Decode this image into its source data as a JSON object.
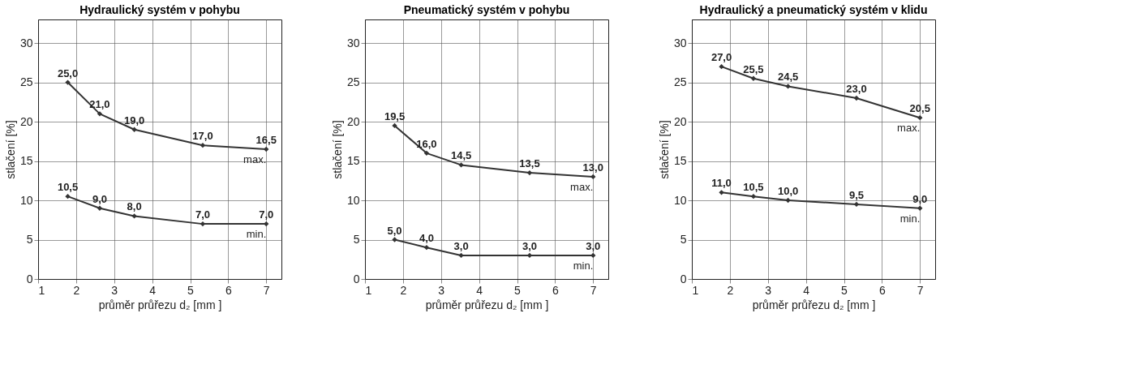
{
  "chart_data": [
    {
      "type": "line",
      "title": "Hydraulický systém v pohybu",
      "xlabel": "průměr průřezu d₂ [mm ]",
      "ylabel": "stlačení [%]",
      "x": [
        1.78,
        2.62,
        3.53,
        5.33,
        7.0
      ],
      "xlim": [
        1,
        7.4
      ],
      "xticks": [
        1,
        2,
        3,
        4,
        5,
        6,
        7
      ],
      "ylim": [
        0,
        33
      ],
      "yticks": [
        0,
        5,
        10,
        15,
        20,
        25,
        30
      ],
      "grid": true,
      "marker": "diamond",
      "line_style": "solid",
      "series": [
        {
          "name": "max.",
          "color": "#333333",
          "values": [
            25.0,
            21.0,
            19.0,
            17.0,
            16.5
          ],
          "value_labels": [
            "25,0",
            "21,0",
            "19,0",
            "17,0",
            "16,5"
          ]
        },
        {
          "name": "min.",
          "color": "#333333",
          "values": [
            10.5,
            9.0,
            8.0,
            7.0,
            7.0
          ],
          "value_labels": [
            "10,5",
            "9,0",
            "8,0",
            "7,0",
            "7,0"
          ]
        }
      ]
    },
    {
      "type": "line",
      "title": "Pneumatický systém v pohybu",
      "xlabel": "průměr průřezu d₂ [mm ]",
      "ylabel": "stlačení [%]",
      "x": [
        1.78,
        2.62,
        3.53,
        5.33,
        7.0
      ],
      "xlim": [
        1,
        7.4
      ],
      "xticks": [
        1,
        2,
        3,
        4,
        5,
        6,
        7
      ],
      "ylim": [
        0,
        33
      ],
      "yticks": [
        0,
        5,
        10,
        15,
        20,
        25,
        30
      ],
      "grid": true,
      "marker": "diamond",
      "line_style": "solid",
      "series": [
        {
          "name": "max.",
          "color": "#333333",
          "values": [
            19.5,
            16.0,
            14.5,
            13.5,
            13.0
          ],
          "value_labels": [
            "19,5",
            "16,0",
            "14,5",
            "13,5",
            "13,0"
          ]
        },
        {
          "name": "min.",
          "color": "#333333",
          "values": [
            5.0,
            4.0,
            3.0,
            3.0,
            3.0
          ],
          "value_labels": [
            "5,0",
            "4,0",
            "3,0",
            "3,0",
            "3,0"
          ]
        }
      ]
    },
    {
      "type": "line",
      "title": "Hydraulický a pneumatický systém v klidu",
      "xlabel": "průměr průřezu d₂ [mm ]",
      "ylabel": "stlačení [%]",
      "x": [
        1.78,
        2.62,
        3.53,
        5.33,
        7.0
      ],
      "xlim": [
        1,
        7.4
      ],
      "xticks": [
        1,
        2,
        3,
        4,
        5,
        6,
        7
      ],
      "ylim": [
        0,
        33
      ],
      "yticks": [
        0,
        5,
        10,
        15,
        20,
        25,
        30
      ],
      "grid": true,
      "marker": "diamond",
      "line_style": "solid",
      "series": [
        {
          "name": "max.",
          "color": "#333333",
          "values": [
            27.0,
            25.5,
            24.5,
            23.0,
            20.5
          ],
          "value_labels": [
            "27,0",
            "25,5",
            "24,5",
            "23,0",
            "20,5"
          ]
        },
        {
          "name": "min.",
          "color": "#333333",
          "values": [
            11.0,
            10.5,
            10.0,
            9.5,
            9.0
          ],
          "value_labels": [
            "11,0",
            "10,5",
            "10,0",
            "9,5",
            "9,0"
          ]
        }
      ]
    }
  ]
}
